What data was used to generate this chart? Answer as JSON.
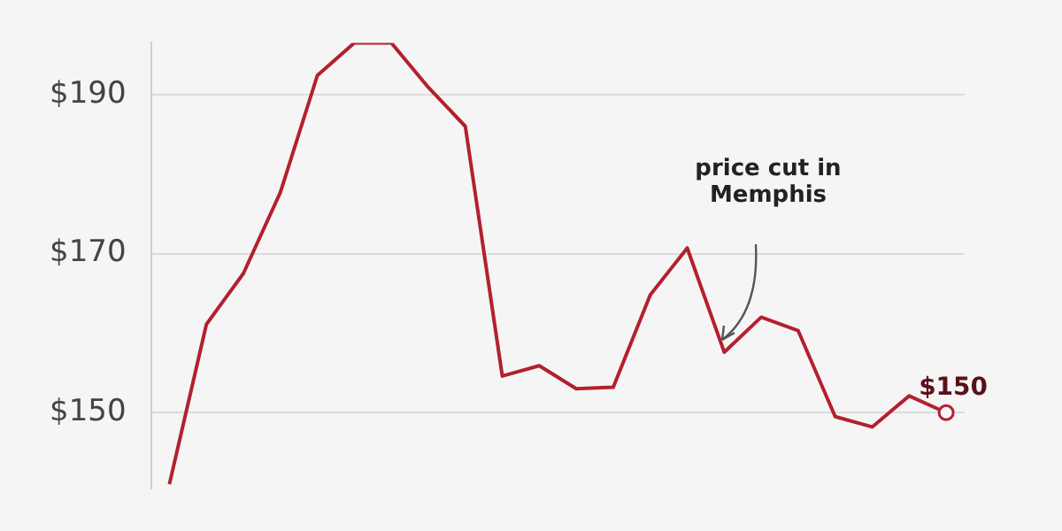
{
  "chart_data": {
    "type": "line",
    "categories": [
      null,
      null,
      null,
      null,
      null,
      null,
      null,
      null,
      null,
      null,
      null,
      null,
      null,
      null,
      null,
      null,
      null,
      null,
      null,
      null,
      null,
      null
    ],
    "series": [
      {
        "color": "#b3202f",
        "values": [
          141,
          161.1,
          167.5,
          177.7,
          192.4,
          196.5,
          196.5,
          190.9,
          186,
          154.6,
          155.9,
          153,
          153.2,
          164.8,
          170.7,
          157.6,
          162,
          160.3,
          149.5,
          148.2,
          152.1,
          150
        ],
        "value_labels": [
          null,
          null,
          null,
          null,
          null,
          null,
          null,
          null,
          null,
          null,
          null,
          null,
          null,
          null,
          null,
          null,
          null,
          null,
          null,
          null,
          null,
          "$150"
        ]
      }
    ],
    "ylim": [
      140.5,
      196.5
    ],
    "yticks": [
      {
        "value": 150,
        "label": "$150"
      },
      {
        "value": 170,
        "label": "$170"
      },
      {
        "value": 190,
        "label": "$190"
      }
    ],
    "grid": "y",
    "legend": false,
    "marker": "none",
    "line_style": "solid",
    "tick_labels": "y",
    "annotations": [
      "price cut in Memphis"
    ]
  }
}
